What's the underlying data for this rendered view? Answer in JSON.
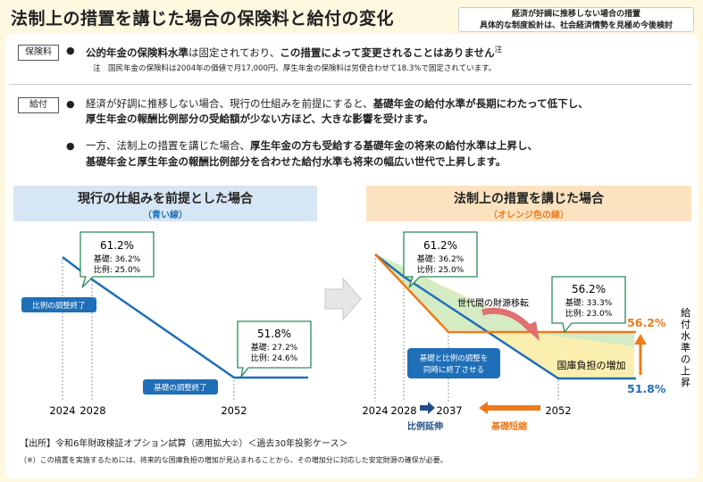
{
  "title": "法制上の措置を講じた場合の保険料と給付の変化",
  "top_note": {
    "line1": "経済が好調に推移しない場合の措置",
    "line2": "具体的な制度設計は、社会経済情勢を見極め今後検討"
  },
  "premium": {
    "tag": "保険料",
    "text_a": "公的年金の保険料水準",
    "text_b": "は固定されており、",
    "text_c": "この措置によって変更されることはありません",
    "text_sup": "注",
    "note": "注　国民年金の保険料は2004年の価値で月17,000円、厚生年金の保険料は労使合わせて18.3%で固定されています。"
  },
  "benefit": {
    "tag": "給付",
    "p1_a": "経済が好調に推移しない場合、現行の仕組みを前提にすると、",
    "p1_b": "基礎年金の給付水準が長期にわたって低下し、",
    "p1_c": "厚生年金の報酬比例部分の受給額が少ない方ほど、大きな影響を受けます。",
    "p2_a": "一方、法制上の措置を講じた場合、",
    "p2_b": "厚生年金の方も受給する基礎年金の将来の給付水準は上昇し、",
    "p2_c": "基礎年金と厚生年金の報酬比例部分を合わせた給付水準も将来の幅広い世代で上昇します。"
  },
  "left_panel": {
    "heading": "現行の仕組みを前提とした場合",
    "sub": "（青い線）",
    "box1": {
      "pct": "61.2%",
      "kiso": "基礎: 36.2%",
      "hirei": "比例: 25.0%"
    },
    "box2": {
      "pct": "51.8%",
      "kiso": "基礎: 27.2%",
      "hirei": "比例: 24.6%"
    },
    "label_hirei_end": "比例の調整終了",
    "label_kiso_end": "基礎の調整終了",
    "x_labels": [
      "2024",
      "2028",
      "2052"
    ]
  },
  "right_panel": {
    "heading": "法制上の措置を講じた場合",
    "sub": "（オレンジ色の線）",
    "box1": {
      "pct": "61.2%",
      "kiso": "基礎: 36.2%",
      "hirei": "比例: 25.0%"
    },
    "box2": {
      "pct": "56.2%",
      "kiso": "基礎: 33.3%",
      "hirei": "比例: 23.0%"
    },
    "transfer": "世代間の財源移転",
    "simul_line1": "基礎と比例の調整を",
    "simul_line2": "同時に終了させる",
    "tax": "国庫負担の増加",
    "val_orange": "56.2%",
    "val_blue": "51.8%",
    "vertical": "給付水準の上昇",
    "x_labels": [
      "2024",
      "2028",
      "2037",
      "2052"
    ],
    "hirei_ext": "比例延伸",
    "kiso_short": "基礎短縮"
  },
  "footer": {
    "source": "【出所】令和6年財政検証オプション試算（適用拡大②）＜過去30年投影ケース＞",
    "note": "（※）この措置を実施するためには、将来的な国庫負担の増加が見込まれることから、その増加分に対応した安定財源の確保が必要。"
  },
  "colors": {
    "blue": "#1f6fb8",
    "orange": "#ee7a1a",
    "green": "#d5ebc4",
    "yellow": "#fbefb0",
    "bg": "#fff8e1"
  }
}
